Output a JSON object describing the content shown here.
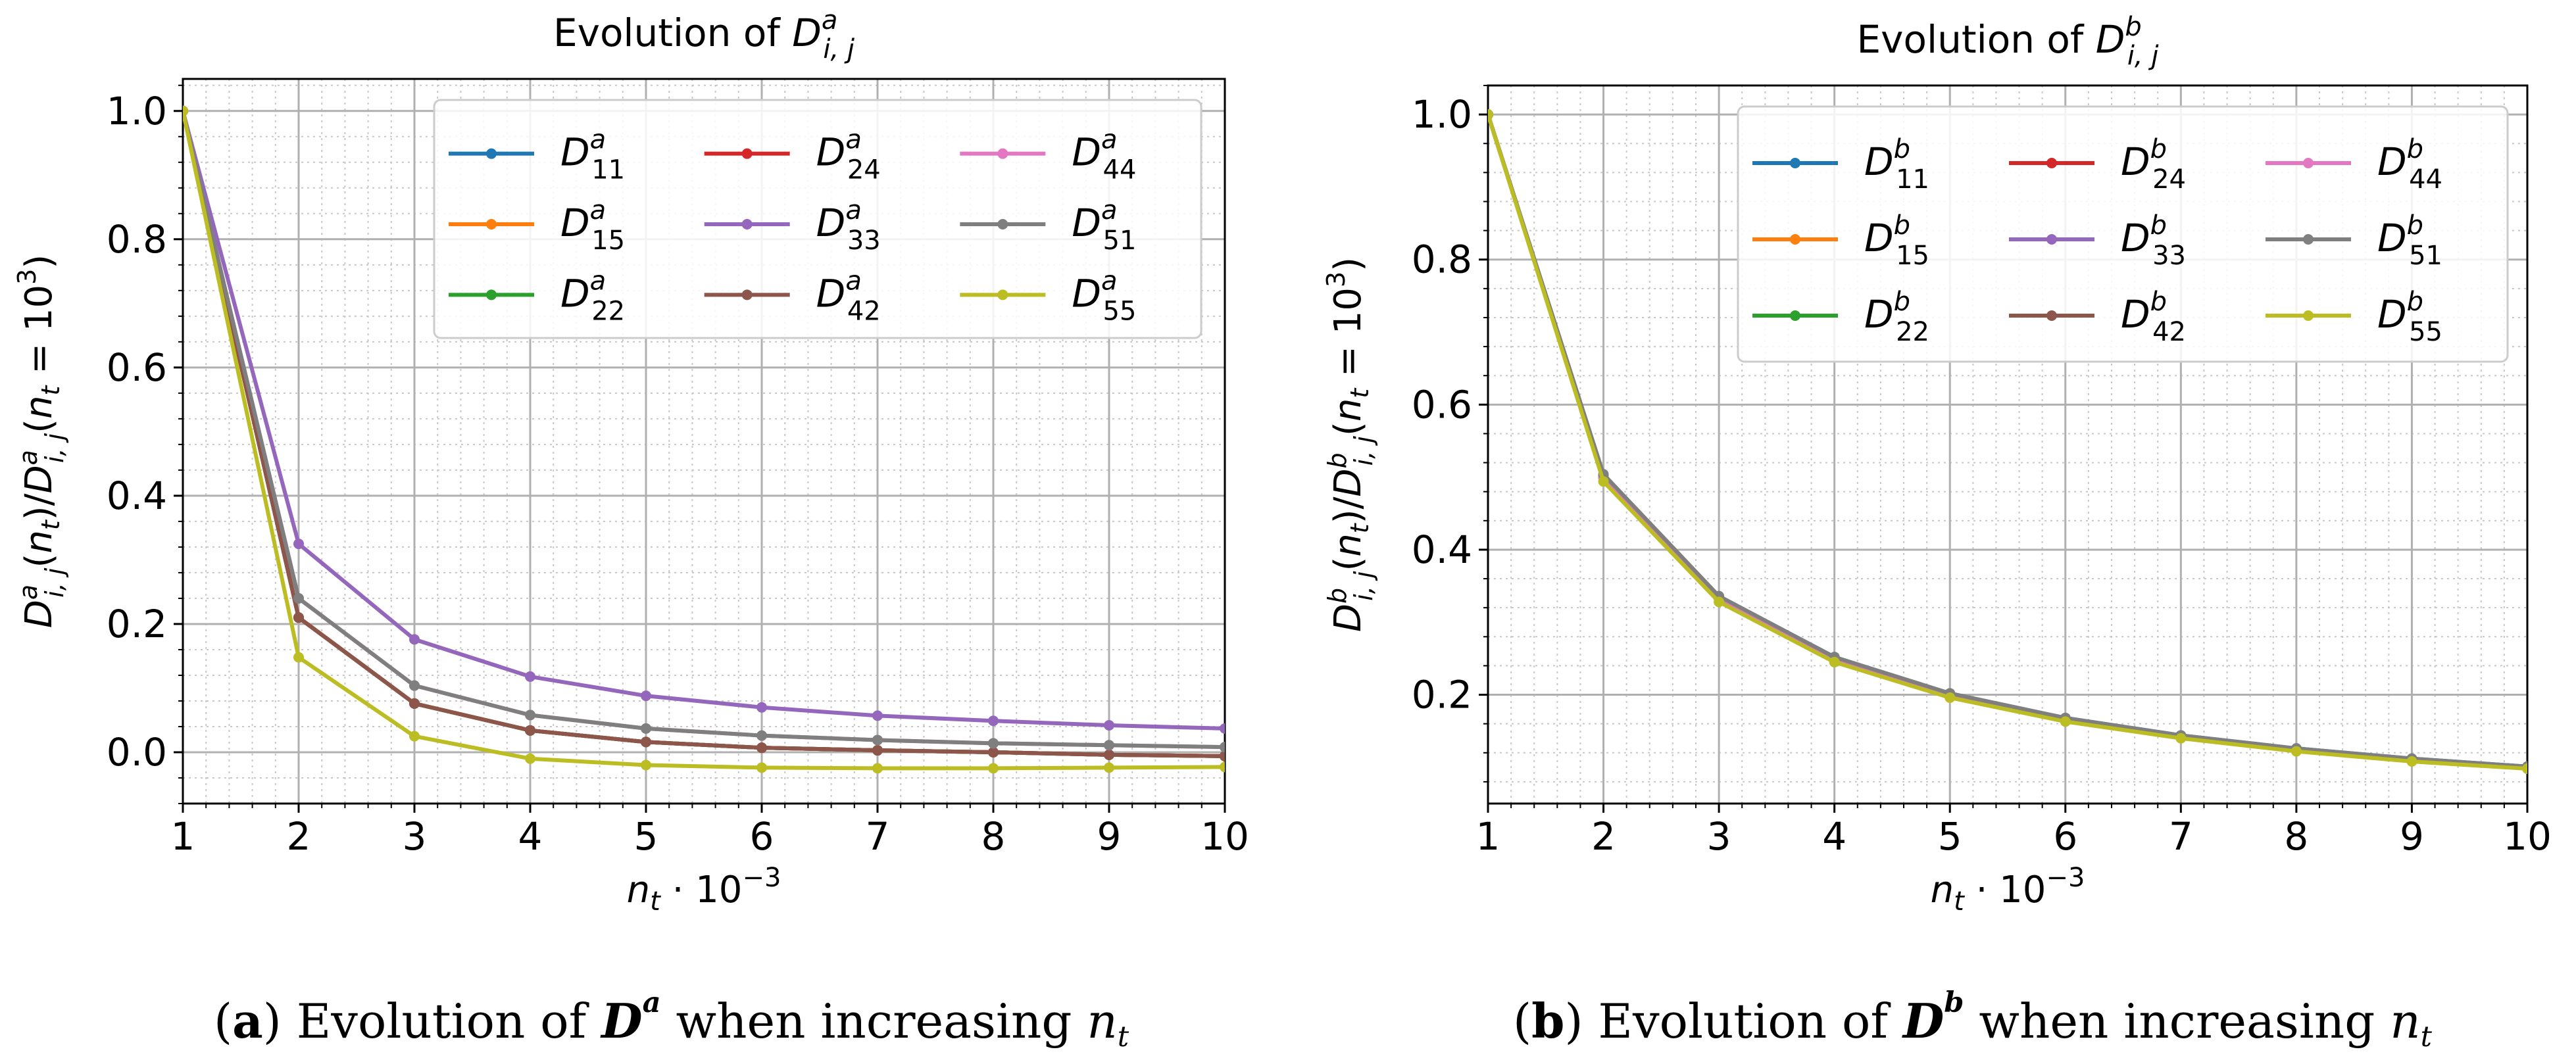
{
  "figure": {
    "panels": [
      {
        "caption": {
          "label": "a",
          "text_before": "Evolution of",
          "symbol": "D",
          "symbol_sup": "a",
          "text_after": "when increasing",
          "var": "n",
          "var_sub": "t"
        }
      },
      {
        "caption": {
          "label": "b",
          "text_before": "Evolution of",
          "symbol": "D",
          "symbol_sup": "b",
          "text_after": "when increasing",
          "var": "n",
          "var_sub": "t"
        }
      }
    ]
  },
  "chart_data": [
    {
      "type": "line",
      "title": "Evolution of D^a_{i,j}",
      "title_text": "Evolution of ",
      "title_symbol": "D",
      "title_sup": "a",
      "title_sub": "i, j",
      "xlabel": "n_t · 10^-3",
      "ylabel": "D^a_{i,j}(n_t)/D^a_{i,j}(n_t = 10^3)",
      "xlim": [
        1,
        10
      ],
      "ylim": [
        -0.08,
        1.05
      ],
      "xticks": [
        1,
        2,
        3,
        4,
        5,
        6,
        7,
        8,
        9,
        10
      ],
      "yticks": [
        0.0,
        0.2,
        0.4,
        0.6,
        0.8,
        1.0
      ],
      "ytick_labels": [
        "0.0",
        "0.2",
        "0.4",
        "0.6",
        "0.8",
        "1.0"
      ],
      "grid": true,
      "legend_position": "top-right",
      "legend_columns": 3,
      "x": [
        1,
        2,
        3,
        4,
        5,
        6,
        7,
        8,
        9,
        10
      ],
      "series": [
        {
          "name": "D^a_11",
          "sup": "a",
          "sub": "11",
          "color": "#1f77b4",
          "values": [
            1.0,
            0.21,
            0.076,
            0.034,
            0.016,
            0.007,
            0.003,
            0.0,
            -0.004,
            -0.006
          ]
        },
        {
          "name": "D^a_15",
          "sup": "a",
          "sub": "15",
          "color": "#ff7f0e",
          "values": [
            1.0,
            0.21,
            0.076,
            0.034,
            0.016,
            0.007,
            0.003,
            0.0,
            -0.004,
            -0.006
          ]
        },
        {
          "name": "D^a_22",
          "sup": "a",
          "sub": "22",
          "color": "#2ca02c",
          "values": [
            1.0,
            0.21,
            0.076,
            0.034,
            0.016,
            0.007,
            0.003,
            0.0,
            -0.004,
            -0.006
          ]
        },
        {
          "name": "D^a_24",
          "sup": "a",
          "sub": "24",
          "color": "#d62728",
          "values": [
            1.0,
            0.21,
            0.076,
            0.034,
            0.016,
            0.007,
            0.003,
            0.0,
            -0.004,
            -0.006
          ]
        },
        {
          "name": "D^a_33",
          "sup": "a",
          "sub": "33",
          "color": "#9467bd",
          "values": [
            1.0,
            0.325,
            0.176,
            0.118,
            0.088,
            0.07,
            0.057,
            0.049,
            0.042,
            0.037
          ]
        },
        {
          "name": "D^a_42",
          "sup": "a",
          "sub": "42",
          "color": "#8c564b",
          "values": [
            1.0,
            0.21,
            0.076,
            0.034,
            0.016,
            0.007,
            0.003,
            0.0,
            -0.004,
            -0.006
          ]
        },
        {
          "name": "D^a_44",
          "sup": "a",
          "sub": "44",
          "color": "#e377c2",
          "values": [
            1.0,
            0.24,
            0.104,
            0.058,
            0.037,
            0.026,
            0.019,
            0.014,
            0.011,
            0.008
          ]
        },
        {
          "name": "D^a_51",
          "sup": "a",
          "sub": "51",
          "color": "#7f7f7f",
          "values": [
            1.0,
            0.24,
            0.104,
            0.058,
            0.037,
            0.026,
            0.019,
            0.014,
            0.011,
            0.008
          ]
        },
        {
          "name": "D^a_55",
          "sup": "a",
          "sub": "55",
          "color": "#bcbd22",
          "values": [
            1.0,
            0.148,
            0.025,
            -0.01,
            -0.02,
            -0.024,
            -0.025,
            -0.025,
            -0.024,
            -0.023
          ]
        }
      ]
    },
    {
      "type": "line",
      "title": "Evolution of D^b_{i,j}",
      "title_text": "Evolution of ",
      "title_symbol": "D",
      "title_sup": "b",
      "title_sub": "i, j",
      "xlabel": "n_t · 10^-3",
      "ylabel": "D^b_{i,j}(n_t)/D^b_{i,j}(n_t = 10^3)",
      "xlim": [
        1,
        10
      ],
      "ylim": [
        0.05,
        1.04
      ],
      "xticks": [
        1,
        2,
        3,
        4,
        5,
        6,
        7,
        8,
        9,
        10
      ],
      "yticks": [
        0.2,
        0.4,
        0.6,
        0.8,
        1.0
      ],
      "ytick_labels": [
        "0.2",
        "0.4",
        "0.6",
        "0.8",
        "1.0"
      ],
      "grid": true,
      "legend_position": "top-right",
      "legend_columns": 3,
      "x": [
        1,
        2,
        3,
        4,
        5,
        6,
        7,
        8,
        9,
        10
      ],
      "series": [
        {
          "name": "D^b_11",
          "sup": "b",
          "sub": "11",
          "color": "#1f77b4",
          "values": [
            1.0,
            0.502,
            0.335,
            0.252,
            0.201,
            0.168,
            0.144,
            0.126,
            0.112,
            0.101
          ]
        },
        {
          "name": "D^b_15",
          "sup": "b",
          "sub": "15",
          "color": "#ff7f0e",
          "values": [
            1.0,
            0.5,
            0.333,
            0.25,
            0.2,
            0.167,
            0.143,
            0.125,
            0.111,
            0.1
          ]
        },
        {
          "name": "D^b_22",
          "sup": "b",
          "sub": "22",
          "color": "#2ca02c",
          "values": [
            1.0,
            0.5,
            0.333,
            0.25,
            0.2,
            0.167,
            0.143,
            0.125,
            0.111,
            0.1
          ]
        },
        {
          "name": "D^b_24",
          "sup": "b",
          "sub": "24",
          "color": "#d62728",
          "values": [
            1.0,
            0.5,
            0.333,
            0.25,
            0.2,
            0.167,
            0.143,
            0.125,
            0.111,
            0.1
          ]
        },
        {
          "name": "D^b_33",
          "sup": "b",
          "sub": "33",
          "color": "#9467bd",
          "values": [
            1.0,
            0.5,
            0.333,
            0.25,
            0.2,
            0.167,
            0.143,
            0.125,
            0.111,
            0.1
          ]
        },
        {
          "name": "D^b_42",
          "sup": "b",
          "sub": "42",
          "color": "#8c564b",
          "values": [
            1.0,
            0.5,
            0.333,
            0.25,
            0.2,
            0.167,
            0.143,
            0.125,
            0.111,
            0.1
          ]
        },
        {
          "name": "D^b_44",
          "sup": "b",
          "sub": "44",
          "color": "#e377c2",
          "values": [
            1.0,
            0.5,
            0.333,
            0.25,
            0.2,
            0.167,
            0.143,
            0.125,
            0.111,
            0.1
          ]
        },
        {
          "name": "D^b_51",
          "sup": "b",
          "sub": "51",
          "color": "#7f7f7f",
          "values": [
            1.0,
            0.504,
            0.336,
            0.252,
            0.202,
            0.168,
            0.144,
            0.126,
            0.112,
            0.101
          ]
        },
        {
          "name": "D^b_55",
          "sup": "b",
          "sub": "55",
          "color": "#bcbd22",
          "values": [
            1.0,
            0.494,
            0.328,
            0.245,
            0.196,
            0.163,
            0.14,
            0.122,
            0.108,
            0.098
          ]
        }
      ]
    }
  ]
}
